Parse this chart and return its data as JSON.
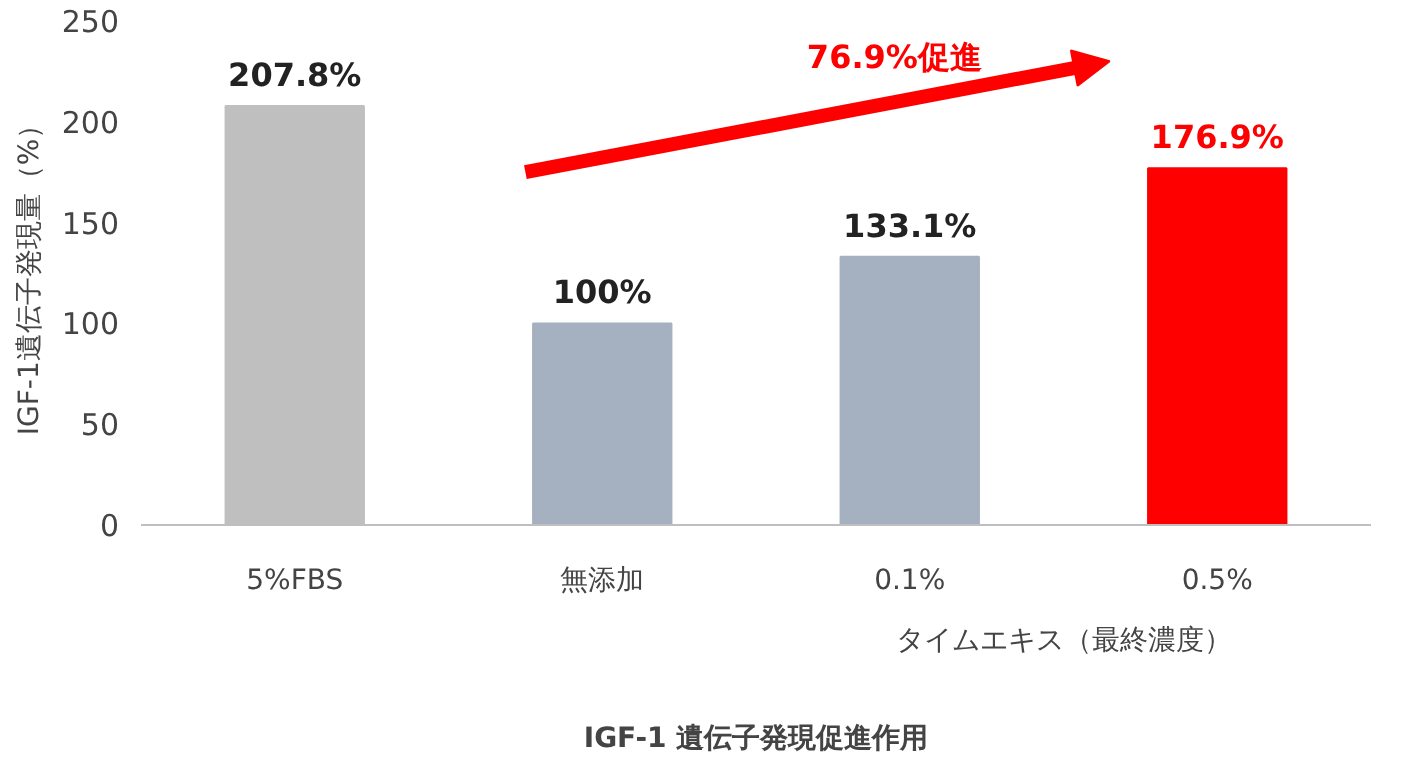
{
  "chart_data": {
    "type": "bar",
    "xlabel": "IGF-1 遺伝子発現促進作用",
    "ylabel": "IGF-1遺伝子発現量（%）",
    "categories": [
      "5%FBS",
      "無添加",
      "0.1%",
      "0.5%"
    ],
    "values": [
      207.8,
      100,
      133.1,
      176.9
    ],
    "colors": [
      "#bfbfbf",
      "#a5b1c0",
      "#a5b1c0",
      "#ff0000"
    ],
    "value_labels": [
      "207.8%",
      "100%",
      "133.1%",
      "176.9%"
    ],
    "ylim": [
      0,
      250
    ],
    "yticks": [
      0,
      50,
      100,
      150,
      200,
      250
    ],
    "grid": false,
    "annotations": [
      "76.9%促進",
      "タイムエキス（最終濃度）"
    ]
  }
}
